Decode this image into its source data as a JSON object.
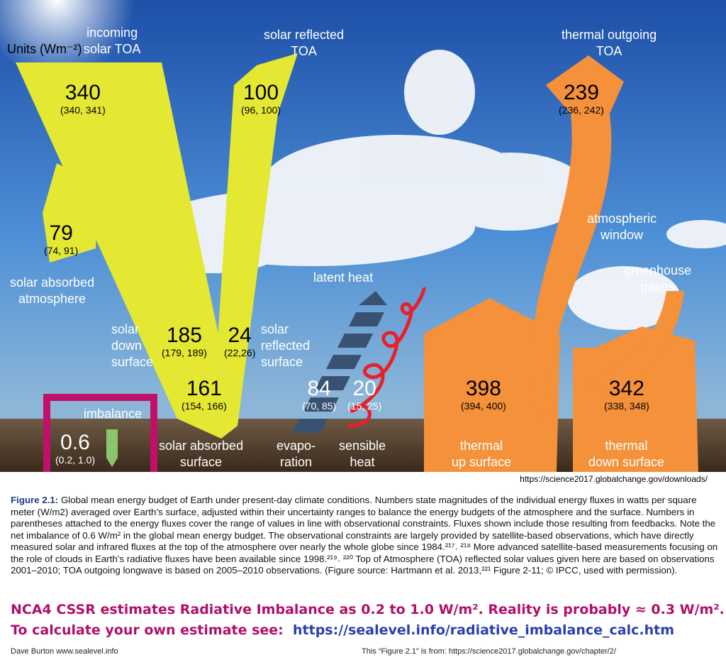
{
  "units": "Units (Wm⁻²)",
  "labels": {
    "incoming": "incoming\nsolar TOA",
    "reflected_toa": "solar reflected\nTOA",
    "thermal_toa": "thermal outgoing\nTOA",
    "atm_window": "atmospheric\nwindow",
    "greenhouse": "greenhouse\ngases",
    "solar_abs_atm": "solar absorbed\natmosphere",
    "solar_down": "solar\ndown\nsurface",
    "solar_refl_surf": "solar\nreflected\nsurface",
    "latent": "latent heat",
    "imbalance": "imbalance",
    "solar_abs_surf": "solar absorbed\nsurface",
    "evap": "evapo-\nration",
    "sensible": "sensible\nheat",
    "thermal_up": "thermal\nup surface",
    "thermal_down": "thermal\ndown surface"
  },
  "fluxes": {
    "incoming": {
      "v": "340",
      "r": "(340, 341)"
    },
    "reflected": {
      "v": "100",
      "r": "(96, 100)"
    },
    "thermal_out": {
      "v": "239",
      "r": "(236, 242)"
    },
    "abs_atm": {
      "v": "79",
      "r": "(74, 91)"
    },
    "down": {
      "v": "185",
      "r": "(179, 189)"
    },
    "refl_surf": {
      "v": "24",
      "r": "(22,26)"
    },
    "abs_surf": {
      "v": "161",
      "r": "(154, 166)"
    },
    "evap": {
      "v": "84",
      "r": "(70, 85)"
    },
    "sensible": {
      "v": "20",
      "r": "(15, 25)"
    },
    "up": {
      "v": "398",
      "r": "(394, 400)"
    },
    "back": {
      "v": "342",
      "r": "(338, 348)"
    },
    "imbalance": {
      "v": "0.6",
      "r": "(0.2, 1.0)"
    }
  },
  "source_url": "https://science2017.globalchange.gov/downloads/",
  "caption": {
    "title": "Figure 2.1:",
    "text": "Global mean energy budget of Earth under present-day climate conditions. Numbers state magnitudes of the individual energy fluxes in watts per square meter (W/m2) averaged over Earth’s surface, adjusted within their uncertainty ranges to balance the energy budgets of the atmosphere and the surface. Numbers in parentheses attached to the energy fluxes cover the range of values in line with observational constraints. Fluxes shown include those resulting from feedbacks. Note the net imbalance of 0.6 W/m² in the global mean energy budget. The observational constraints are largely provided by satellite-based observations, which have directly measured solar and infrared fluxes at the top of the atmosphere over nearly the whole globe since 1984.²¹⁷˒ ²¹⁸ More advanced satellite-based measurements focusing on the role of clouds in Earth’s radiative fluxes have been available since 1998.²¹⁹˒ ²²⁰ Top of Atmosphere (TOA) reflected solar values given here are based on observations 2001–2010; TOA outgoing longwave is based on 2005–2010 observations. (Figure source: Hartmann et al. 2013,²²¹ Figure 2-11; © IPCC, used with permission)."
  },
  "note1": "NCA4 CSSR estimates Radiative Imbalance as 0.2 to 1.0 W/m².  Reality is probably ≈ 0.3 W/m².",
  "note2_prefix": "To calculate your own estimate see:",
  "note2_link": "https://sealevel.info/radiative_imbalance_calc.htm",
  "credit": "Dave Burton   www.sealevel.info",
  "credit2": "This “Figure 2.1” is from:  https://science2017.globalchange.gov/chapter/2/",
  "colors": {
    "solar": "#e4e832",
    "thermal": "#f5913a",
    "imbalance_box": "#c0106a",
    "latent": "#3a5272",
    "sensible": "#e8202a"
  }
}
